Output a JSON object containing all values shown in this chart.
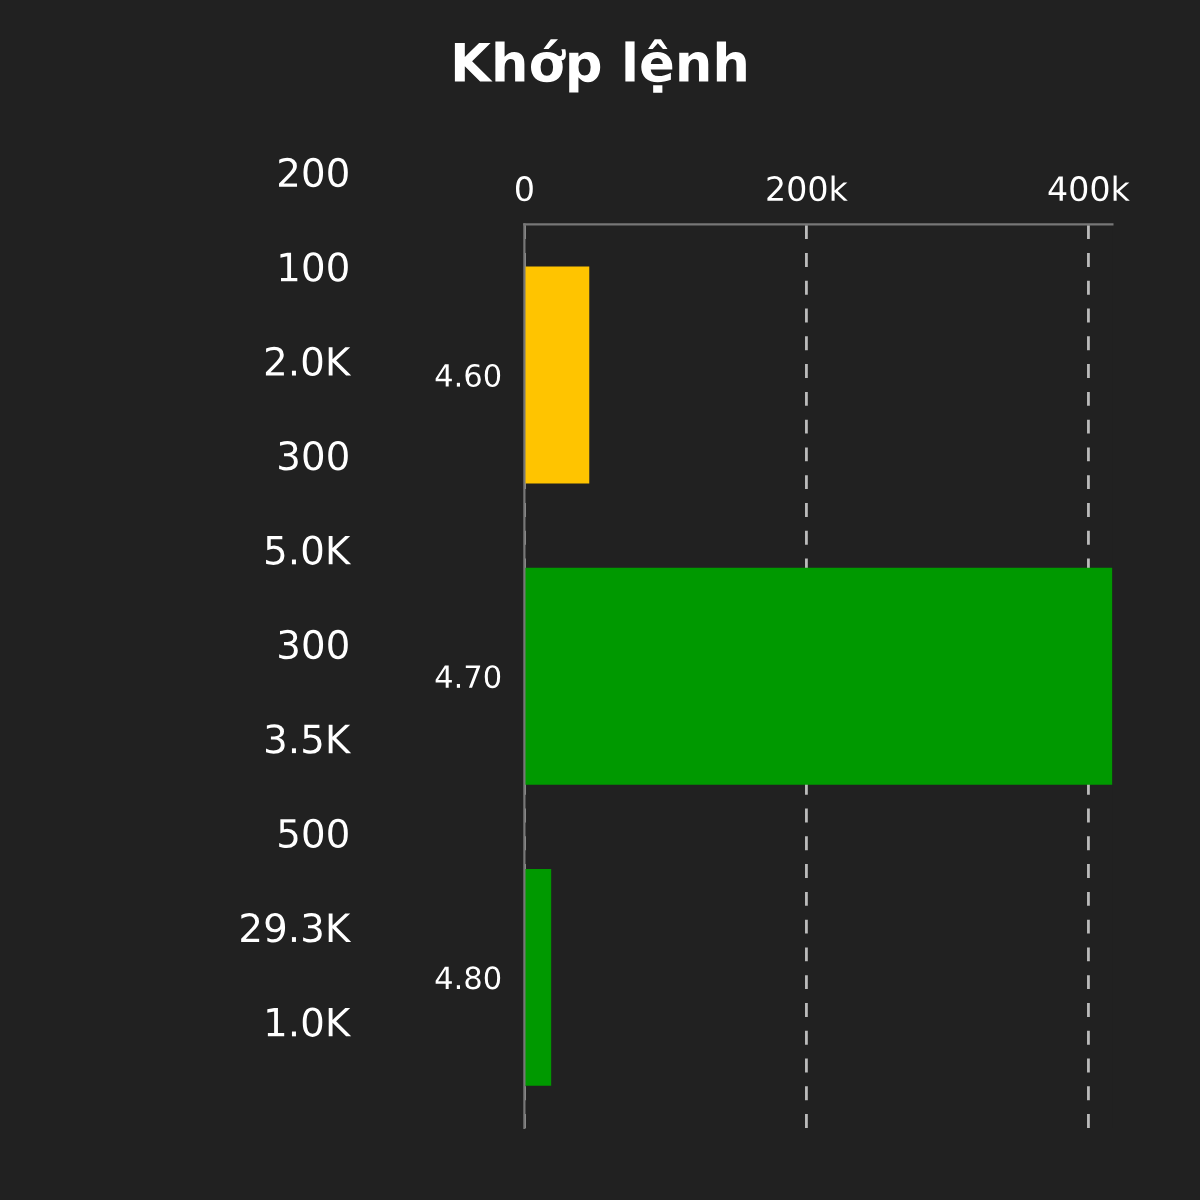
{
  "chart_data": {
    "type": "bar",
    "orientation": "horizontal",
    "title": "Khớp lệnh",
    "categories": [
      "4.60",
      "4.70",
      "4.80"
    ],
    "values": [
      46000,
      417000,
      19000
    ],
    "colors": [
      "#ffc400",
      "#009900",
      "#009900"
    ],
    "xlim": [
      0,
      417000
    ],
    "xticks": [
      0,
      {
        "value": 200000,
        "label": "200k"
      },
      {
        "value": 400000,
        "label": "400k"
      }
    ],
    "grid": "x",
    "annotations": [
      "200",
      "100",
      "2.0K",
      "300",
      "5.0K",
      "300",
      "3.5K",
      "500",
      "29.3K",
      "1.0K"
    ]
  }
}
